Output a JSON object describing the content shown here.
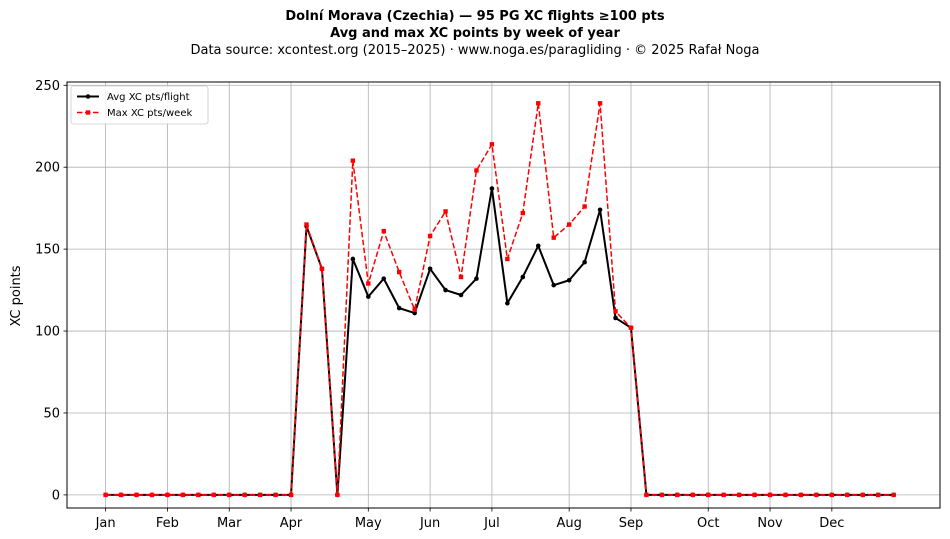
{
  "chart_data": {
    "type": "line",
    "title_line1": "Dolní Morava (Czechia)  —  95 PG XC flights ≥100 pts",
    "title_line2": "Avg and max XC points by week of year",
    "subtitle": "Data source: xcontest.org (2015–2025)  ·  www.noga.es/paragliding  ·  © 2025 Rafał Noga",
    "xlabel": "",
    "ylabel": "XC points",
    "ylim": [
      -8,
      252
    ],
    "xlim": [
      -2.5,
      54
    ],
    "yticks": [
      0,
      50,
      100,
      150,
      200,
      250
    ],
    "xticks": [
      {
        "label": "Jan",
        "week": 0
      },
      {
        "label": "Feb",
        "week": 4
      },
      {
        "label": "Mar",
        "week": 8
      },
      {
        "label": "Apr",
        "week": 12
      },
      {
        "label": "May",
        "week": 17
      },
      {
        "label": "Jun",
        "week": 21
      },
      {
        "label": "Jul",
        "week": 25
      },
      {
        "label": "Aug",
        "week": 30
      },
      {
        "label": "Sep",
        "week": 34
      },
      {
        "label": "Oct",
        "week": 39
      },
      {
        "label": "Nov",
        "week": 43
      },
      {
        "label": "Dec",
        "week": 47
      }
    ],
    "grid": true,
    "legend_position": "top-left",
    "x": [
      0,
      1,
      2,
      3,
      4,
      5,
      6,
      7,
      8,
      9,
      10,
      11,
      12,
      13,
      14,
      15,
      16,
      17,
      18,
      19,
      20,
      21,
      22,
      23,
      24,
      25,
      26,
      27,
      28,
      29,
      30,
      31,
      32,
      33,
      34,
      35,
      36,
      37,
      38,
      39,
      40,
      41,
      42,
      43,
      44,
      45,
      46,
      47,
      48,
      49,
      50,
      51
    ],
    "series": [
      {
        "name": "Avg XC pts/flight",
        "color": "#000000",
        "style": "solid",
        "marker": "circle",
        "values": [
          0,
          0,
          0,
          0,
          0,
          0,
          0,
          0,
          0,
          0,
          0,
          0,
          0,
          164,
          138,
          0,
          144,
          121,
          132,
          114,
          111,
          138,
          125,
          122,
          132,
          187,
          117,
          133,
          152,
          128,
          131,
          142,
          174,
          108,
          102,
          0,
          0,
          0,
          0,
          0,
          0,
          0,
          0,
          0,
          0,
          0,
          0,
          0,
          0,
          0,
          0,
          0
        ]
      },
      {
        "name": "Max XC pts/week",
        "color": "#ff0000",
        "style": "dashed",
        "marker": "square",
        "values": [
          0,
          0,
          0,
          0,
          0,
          0,
          0,
          0,
          0,
          0,
          0,
          0,
          0,
          165,
          138,
          0,
          204,
          129,
          161,
          136,
          113,
          158,
          173,
          133,
          198,
          214,
          144,
          172,
          239,
          157,
          165,
          176,
          239,
          112,
          102,
          0,
          0,
          0,
          0,
          0,
          0,
          0,
          0,
          0,
          0,
          0,
          0,
          0,
          0,
          0,
          0,
          0
        ]
      }
    ]
  }
}
